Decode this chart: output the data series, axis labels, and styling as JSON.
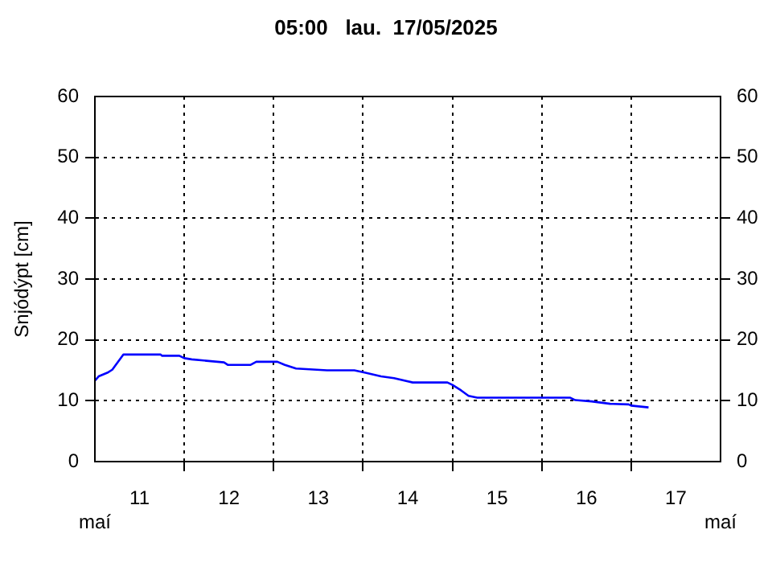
{
  "chart_data": {
    "type": "line",
    "title": "05:00   lau.  17/05/2025",
    "ylabel": "Snjódýpt [cm]",
    "annotations": [
      "maí",
      "maí"
    ],
    "x": [
      "2025-05-11T00:00",
      "2025-05-11T01:00",
      "2025-05-11T03:20",
      "2025-05-11T04:40",
      "2025-05-11T07:40",
      "2025-05-11T17:40",
      "2025-05-11T18:00",
      "2025-05-11T22:40",
      "2025-05-12T00:00",
      "2025-05-12T02:00",
      "2025-05-12T10:40",
      "2025-05-12T11:40",
      "2025-05-12T17:50",
      "2025-05-12T19:20",
      "2025-05-13T01:00",
      "2025-05-13T03:00",
      "2025-05-13T06:00",
      "2025-05-13T14:20",
      "2025-05-13T21:40",
      "2025-05-14T00:40",
      "2025-05-14T04:50",
      "2025-05-14T08:20",
      "2025-05-14T13:20",
      "2025-05-14T22:40",
      "2025-05-15T00:00",
      "2025-05-15T02:20",
      "2025-05-15T04:20",
      "2025-05-15T06:40",
      "2025-05-16T07:40",
      "2025-05-16T09:00",
      "2025-05-16T13:20",
      "2025-05-16T18:20",
      "2025-05-16T23:20",
      "2025-05-17T00:00",
      "2025-05-17T04:40"
    ],
    "series": [
      {
        "color": "#0000ff",
        "values": [
          13.3,
          14.0,
          14.6,
          15.1,
          17.6,
          17.6,
          17.4,
          17.4,
          17.0,
          16.8,
          16.3,
          15.9,
          15.9,
          16.4,
          16.4,
          15.9,
          15.3,
          15.0,
          15.0,
          14.6,
          14.0,
          13.7,
          13.0,
          13.0,
          12.6,
          11.7,
          10.8,
          10.5,
          10.5,
          10.1,
          9.9,
          9.5,
          9.4,
          9.2,
          8.9
        ]
      }
    ],
    "xlim": [
      "2025-05-11",
      "2025-05-18"
    ],
    "xticks": [
      {
        "value": "2025-05-11T12:00",
        "label": "11"
      },
      {
        "value": "2025-05-12",
        "label": null
      },
      {
        "value": "2025-05-12T12:00",
        "label": "12"
      },
      {
        "value": "2025-05-13",
        "label": null
      },
      {
        "value": "2025-05-13T12:00",
        "label": "13"
      },
      {
        "value": "2025-05-14",
        "label": null
      },
      {
        "value": "2025-05-14T12:00",
        "label": "14"
      },
      {
        "value": "2025-05-15",
        "label": null
      },
      {
        "value": "2025-05-15T12:00",
        "label": "15"
      },
      {
        "value": "2025-05-16",
        "label": null
      },
      {
        "value": "2025-05-16T12:00",
        "label": "16"
      },
      {
        "value": "2025-05-17",
        "label": null
      },
      {
        "value": "2025-05-17T12:00",
        "label": "17"
      }
    ],
    "ylim": [
      0,
      60
    ],
    "yticks": [
      0,
      10,
      20,
      30,
      40,
      50,
      60
    ],
    "y2lim": [
      0,
      60
    ],
    "y2ticks": [
      0,
      10,
      20,
      30,
      40,
      50,
      60
    ],
    "grid": true,
    "legend": false,
    "marker": "none",
    "line_style": "solid"
  }
}
